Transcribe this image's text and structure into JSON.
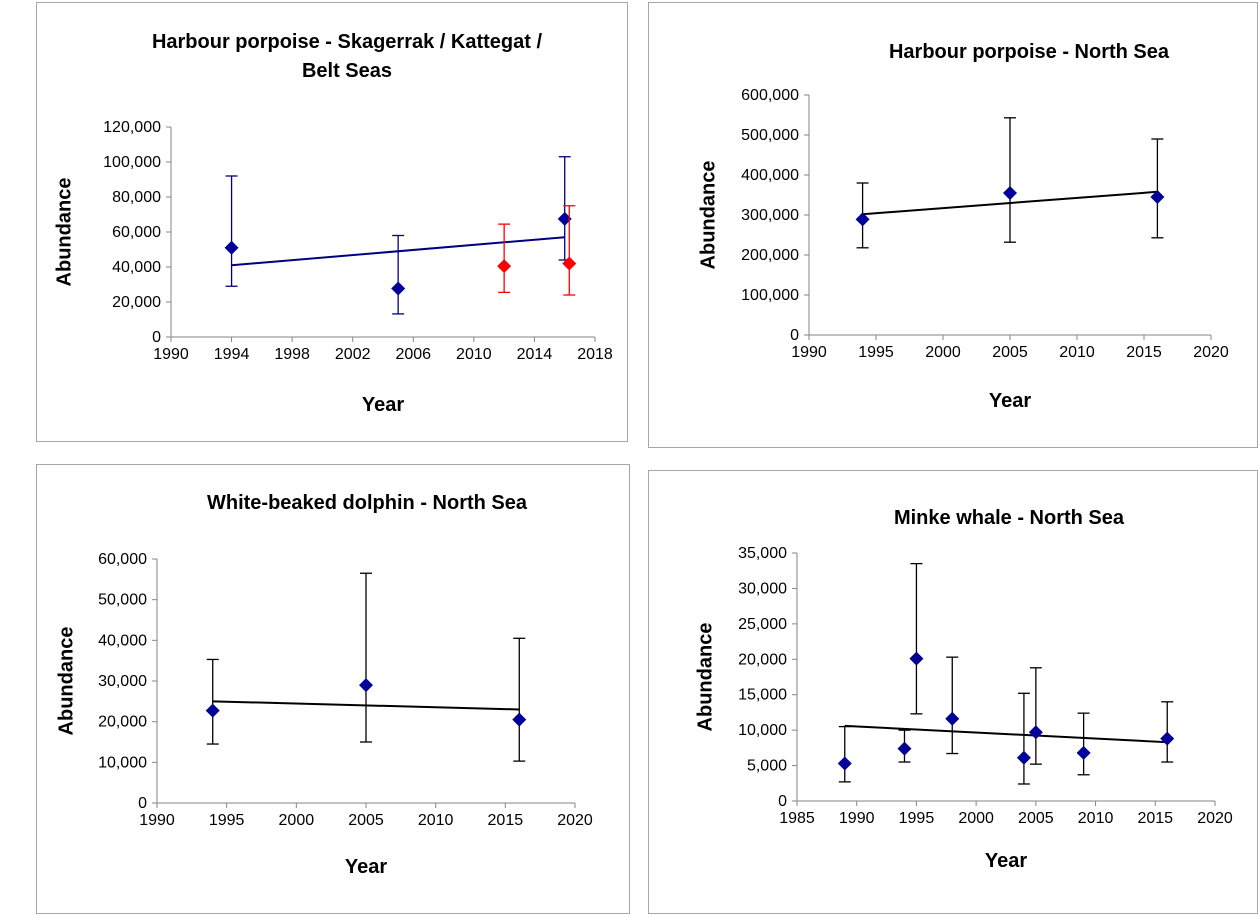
{
  "colors": {
    "blue": "#000099",
    "blue_line": "#000080",
    "red": "#ff0000",
    "black": "#000000",
    "axis": "#868686"
  },
  "chart_data": [
    {
      "type": "scatter",
      "title": "Harbour porpoise - Skagerrak / Kattegat / Belt Seas",
      "title_lines": [
        "Harbour porpoise - Skagerrak / Kattegat /",
        "Belt Seas"
      ],
      "xlabel": "Year",
      "ylabel": "Abundance",
      "xlim": [
        1990,
        2018
      ],
      "ylim": [
        0,
        120000
      ],
      "xticks": [
        1990,
        1994,
        1998,
        2002,
        2006,
        2010,
        2014,
        2018
      ],
      "xtick_labels": [
        "1990",
        "1994",
        "1998",
        "2002",
        "2006",
        "2010",
        "2014",
        "2018"
      ],
      "yticks": [
        0,
        20000,
        40000,
        60000,
        80000,
        100000,
        120000
      ],
      "ytick_labels": [
        "0",
        "20,000",
        "40,000",
        "60,000",
        "80,000",
        "100,000",
        "120,000"
      ],
      "grid": false,
      "series": [
        {
          "color": "blue",
          "line_color": "blue_line",
          "points": [
            {
              "x": 1994,
              "y": 51000,
              "low": 29000,
              "high": 92000
            },
            {
              "x": 2005,
              "y": 27700,
              "low": 13200,
              "high": 58000
            },
            {
              "x": 2016,
              "y": 67500,
              "low": 44000,
              "high": 103000
            }
          ],
          "trend": {
            "x": [
              1994,
              2016
            ],
            "y": [
              41000,
              57000
            ]
          }
        },
        {
          "color": "red",
          "points": [
            {
              "x": 2012,
              "y": 40500,
              "low": 25500,
              "high": 64500
            },
            {
              "x": 2016.3,
              "y": 42000,
              "low": 24000,
              "high": 75000
            }
          ]
        }
      ]
    },
    {
      "type": "scatter",
      "title": "Harbour porpoise - North Sea",
      "title_lines": [
        "Harbour porpoise - North Sea"
      ],
      "xlabel": "Year",
      "ylabel": "Abundance",
      "xlim": [
        1990,
        2020
      ],
      "ylim": [
        0,
        600000
      ],
      "xticks": [
        1990,
        1995,
        2000,
        2005,
        2010,
        2015,
        2020
      ],
      "xtick_labels": [
        "1990",
        "1995",
        "2000",
        "2005",
        "2010",
        "2015",
        "2020"
      ],
      "yticks": [
        0,
        100000,
        200000,
        300000,
        400000,
        500000,
        600000
      ],
      "ytick_labels": [
        "0",
        "100,000",
        "200,000",
        "300,000",
        "400,000",
        "500,000",
        "600,000"
      ],
      "grid": false,
      "series": [
        {
          "color": "blue",
          "line_color": "black",
          "points": [
            {
              "x": 1994,
              "y": 289000,
              "low": 218000,
              "high": 380000
            },
            {
              "x": 2005,
              "y": 355000,
              "low": 232000,
              "high": 543000
            },
            {
              "x": 2016,
              "y": 345000,
              "low": 243000,
              "high": 490000
            }
          ],
          "trend": {
            "x": [
              1994,
              2016
            ],
            "y": [
              302000,
              358000
            ]
          }
        }
      ]
    },
    {
      "type": "scatter",
      "title": "White-beaked dolphin - North Sea",
      "title_lines": [
        "White-beaked dolphin - North Sea"
      ],
      "xlabel": "Year",
      "ylabel": "Abundance",
      "xlim": [
        1990,
        2020
      ],
      "ylim": [
        0,
        60000
      ],
      "xticks": [
        1990,
        1995,
        2000,
        2005,
        2010,
        2015,
        2020
      ],
      "xtick_labels": [
        "1990",
        "1995",
        "2000",
        "2005",
        "2010",
        "2015",
        "2020"
      ],
      "yticks": [
        0,
        10000,
        20000,
        30000,
        40000,
        50000,
        60000
      ],
      "ytick_labels": [
        "0",
        "10,000",
        "20,000",
        "30,000",
        "40,000",
        "50,000",
        "60,000"
      ],
      "grid": false,
      "series": [
        {
          "color": "blue",
          "line_color": "black",
          "points": [
            {
              "x": 1994,
              "y": 22700,
              "low": 14500,
              "high": 35300
            },
            {
              "x": 2005,
              "y": 29000,
              "low": 15000,
              "high": 56500
            },
            {
              "x": 2016,
              "y": 20500,
              "low": 10300,
              "high": 40500
            }
          ],
          "trend": {
            "x": [
              1994,
              2016
            ],
            "y": [
              25000,
              23000
            ]
          }
        }
      ]
    },
    {
      "type": "scatter",
      "title": "Minke whale - North Sea",
      "title_lines": [
        "Minke whale - North Sea"
      ],
      "xlabel": "Year",
      "ylabel": "Abundance",
      "xlim": [
        1985,
        2020
      ],
      "ylim": [
        0,
        35000
      ],
      "xticks": [
        1985,
        1990,
        1995,
        2000,
        2005,
        2010,
        2015,
        2020
      ],
      "xtick_labels": [
        "1985",
        "1990",
        "1995",
        "2000",
        "2005",
        "2010",
        "2015",
        "2020"
      ],
      "yticks": [
        0,
        5000,
        10000,
        15000,
        20000,
        25000,
        30000,
        35000
      ],
      "ytick_labels": [
        "0",
        "5,000",
        "10,000",
        "15,000",
        "20,000",
        "25,000",
        "30,000",
        "35,000"
      ],
      "grid": false,
      "series": [
        {
          "color": "blue",
          "line_color": "black",
          "points": [
            {
              "x": 1989,
              "y": 5300,
              "low": 2700,
              "high": 10500
            },
            {
              "x": 1994,
              "y": 7400,
              "low": 5500,
              "high": 10000
            },
            {
              "x": 1995,
              "y": 20100,
              "low": 12300,
              "high": 33500
            },
            {
              "x": 1998,
              "y": 11600,
              "low": 6700,
              "high": 20300
            },
            {
              "x": 2004,
              "y": 6100,
              "low": 2400,
              "high": 15200
            },
            {
              "x": 2005,
              "y": 9700,
              "low": 5200,
              "high": 18800
            },
            {
              "x": 2009,
              "y": 6800,
              "low": 3700,
              "high": 12400
            },
            {
              "x": 2016,
              "y": 8800,
              "low": 5500,
              "high": 14000
            }
          ],
          "trend": {
            "x": [
              1989,
              2016
            ],
            "y": [
              10600,
              8300
            ]
          }
        }
      ]
    }
  ]
}
